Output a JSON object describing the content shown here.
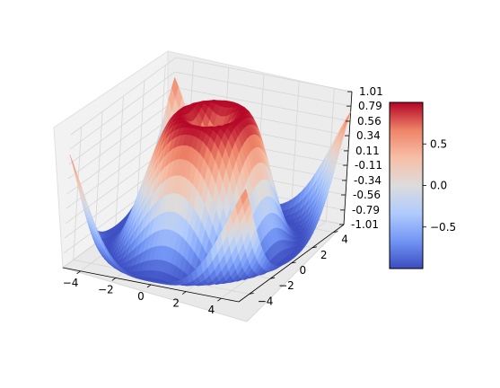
{
  "chart_data": {
    "type": "surface3d",
    "function": "sin(sqrt(x^2 + y^2))",
    "title": "",
    "xlabel": "",
    "ylabel": "",
    "zlabel": "",
    "xlim": [
      -5,
      5
    ],
    "ylim": [
      -5,
      5
    ],
    "zlim": [
      -1.01,
      1.01
    ],
    "grid": true,
    "colormap": "coolwarm",
    "x_ticks": [
      "−4",
      "−2",
      "0",
      "2",
      "4"
    ],
    "y_ticks": [
      "−4",
      "−2",
      "0",
      "2",
      "4"
    ],
    "z_ticks": [
      "-1.01",
      "-0.79",
      "-0.56",
      "-0.34",
      "-0.11",
      "0.11",
      "0.34",
      "0.56",
      "0.79",
      "1.01"
    ],
    "colorbar": {
      "range": [
        -1.0,
        1.0
      ],
      "ticks": [
        {
          "value": 0.5,
          "label": "0.5"
        },
        {
          "value": 0.0,
          "label": "0.0"
        },
        {
          "value": -0.5,
          "label": "−0.5"
        }
      ],
      "colors": [
        "#3b4cc0",
        "#7396f5",
        "#b0cbfc",
        "#dddcdc",
        "#f6bfa6",
        "#ee8468",
        "#b40426"
      ]
    },
    "grid_resolution": 40
  }
}
